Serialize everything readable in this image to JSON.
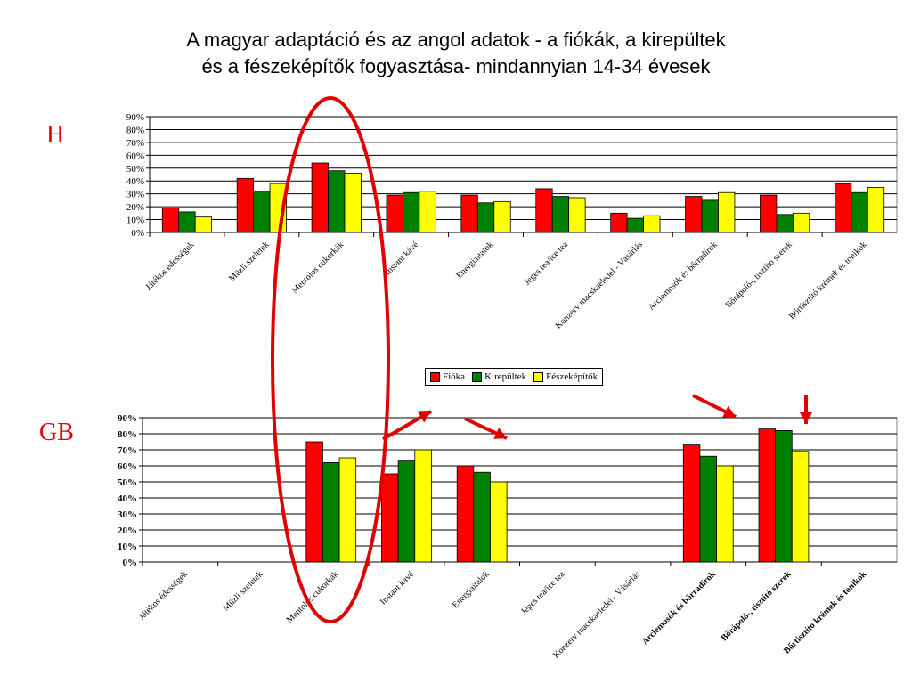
{
  "title_line1": "A magyar adaptáció és az angol adatok - a fiókák, a kirepültek",
  "title_line2": "és a fészeképítők fogyasztása- mindannyian 14-34 évesek",
  "labels": {
    "h": "H",
    "gb": "GB"
  },
  "colors": {
    "series": [
      "#ff0000",
      "#008000",
      "#ffff00"
    ],
    "annotation": "#e00000"
  },
  "legend": [
    {
      "name": "Fióka",
      "color": "#ff0000"
    },
    {
      "name": "Kirepültek",
      "color": "#008000"
    },
    {
      "name": "Fészeképítők",
      "color": "#ffff00"
    }
  ],
  "chart_data": [
    {
      "type": "bar",
      "panel": "H",
      "categories": [
        "Játékos édességek",
        "Müzli szeletek",
        "Mentolos cukorkák",
        "Instant kávé",
        "Energiaitalok",
        "Jeges tea/ice tea",
        "Konzerv macskaeledel - Vásárlás",
        "Arclemosók és bőrradírok",
        "Bőrápoló-, tisztító szerek",
        "Bőrtisztító krémek és tonikok"
      ],
      "yticks": [
        "0%",
        "10%",
        "20%",
        "30%",
        "40%",
        "50%",
        "60%",
        "70%",
        "80%",
        "90%"
      ],
      "ylim": [
        0,
        90
      ],
      "grid": true,
      "series": [
        {
          "name": "Fióka",
          "values": [
            19,
            42,
            54,
            29,
            29,
            34,
            15,
            28,
            29,
            38
          ]
        },
        {
          "name": "Kirepültek",
          "values": [
            16,
            32,
            48,
            31,
            23,
            28,
            11,
            25,
            14,
            31
          ]
        },
        {
          "name": "Fészeképítők",
          "values": [
            12,
            38,
            46,
            32,
            24,
            27,
            13,
            31,
            15,
            35
          ]
        }
      ]
    },
    {
      "type": "bar",
      "panel": "GB",
      "categories": [
        "Játékos édességek",
        "Müzli szeletek",
        "Mentolos cukorkák",
        "Instant kávé",
        "Energiaitalok",
        "Jeges tea/ice tea",
        "Konzerv macskaeledel - Vásárlás",
        "Arclemosók és bőrradírok",
        "Bőrápoló-, tisztító szerek",
        "Bőrtisztító krémek és tonikok"
      ],
      "yticks": [
        "0%",
        "10%",
        "20%",
        "30%",
        "40%",
        "50%",
        "60%",
        "70%",
        "80%",
        "90%"
      ],
      "ylim": [
        0,
        90
      ],
      "grid": true,
      "series": [
        {
          "name": "Fióka",
          "values": [
            null,
            null,
            75,
            55,
            60,
            null,
            null,
            73,
            83,
            null
          ]
        },
        {
          "name": "Kirepültek",
          "values": [
            null,
            null,
            62,
            63,
            56,
            null,
            null,
            66,
            82,
            null
          ]
        },
        {
          "name": "Fészeképítők",
          "values": [
            null,
            null,
            65,
            70,
            50,
            null,
            null,
            60,
            69,
            null
          ]
        }
      ]
    }
  ]
}
